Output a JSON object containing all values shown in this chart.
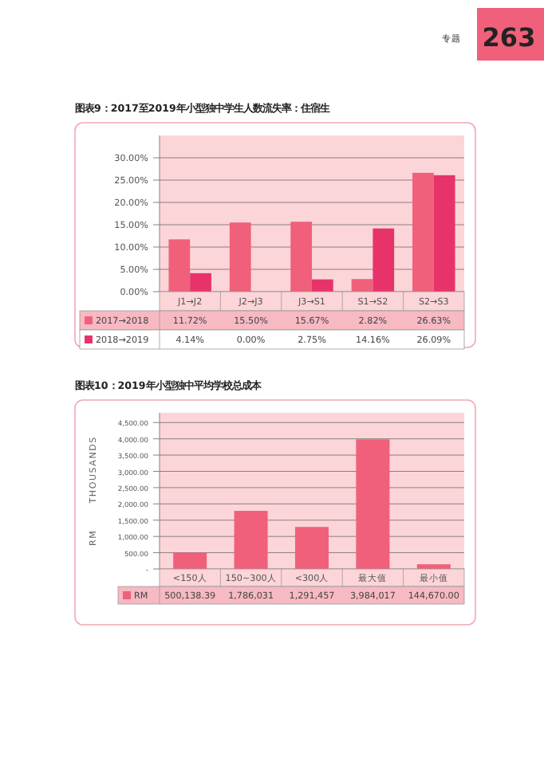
{
  "chart_data": [
    {
      "type": "bar",
      "title": "图表9：2017至2019年小型独中学生人数流失率：住宿生",
      "annotations": [
        "专题",
        "263"
      ],
      "categories": [
        "J1→J2",
        "J2→J3",
        "J3→S1",
        "S1→S2",
        "S2→S3"
      ],
      "series": [
        {
          "name": "2017→2018",
          "color": "#f0607a",
          "values": [
            11.72,
            15.5,
            15.67,
            2.82,
            26.63
          ],
          "value_labels": [
            "11.72%",
            "15.50%",
            "15.67%",
            "2.82%",
            "26.63%"
          ]
        },
        {
          "name": "2018→2019",
          "color": "#e8336a",
          "values": [
            4.14,
            0.0,
            2.75,
            14.16,
            26.09
          ],
          "value_labels": [
            "4.14%",
            "0.00%",
            "2.75%",
            "14.16%",
            "26.09%"
          ]
        }
      ],
      "ylim": [
        0,
        35
      ],
      "yticks": [
        {
          "value": 0,
          "label": "0.00%"
        },
        {
          "value": 5,
          "label": "5.00%"
        },
        {
          "value": 10,
          "label": "10.00%"
        },
        {
          "value": 15,
          "label": "15.00%"
        },
        {
          "value": 20,
          "label": "20.00%"
        },
        {
          "value": 25,
          "label": "25.00%"
        },
        {
          "value": 30,
          "label": "30.00%"
        }
      ],
      "grid": "y",
      "legend": "bottom"
    },
    {
      "type": "bar",
      "title": "图表10：2019年小型独中平均学校总成本",
      "ylabel": "RM THOUSANDS",
      "categories": [
        "<150人",
        "150~300人",
        "<300人",
        "最大值",
        "最小值"
      ],
      "series": [
        {
          "name": "RM",
          "color": "#f0607a",
          "values": [
            500.1,
            1786.0,
            1291.5,
            3984.0,
            144.7
          ]
        }
      ],
      "annotations": [
        "500,138.39",
        "1,786,031",
        "1,291,457",
        "3,984,017",
        "144,670.00"
      ],
      "ylim": [
        0,
        4800
      ],
      "yticks": [
        {
          "value": 0,
          "label": "-"
        },
        {
          "value": 500,
          "label": "500.00"
        },
        {
          "value": 1000,
          "label": "1,000.00"
        },
        {
          "value": 1500,
          "label": "1,500.00"
        },
        {
          "value": 2000,
          "label": "2,000.00"
        },
        {
          "value": 2500,
          "label": "2,500.00"
        },
        {
          "value": 3000,
          "label": "3,000.00"
        },
        {
          "value": 3500,
          "label": "3,500.00"
        },
        {
          "value": 4000,
          "label": "4,000.00"
        },
        {
          "value": 4500,
          "label": "4,500.00"
        }
      ],
      "grid": "y",
      "legend": "bottom"
    }
  ]
}
